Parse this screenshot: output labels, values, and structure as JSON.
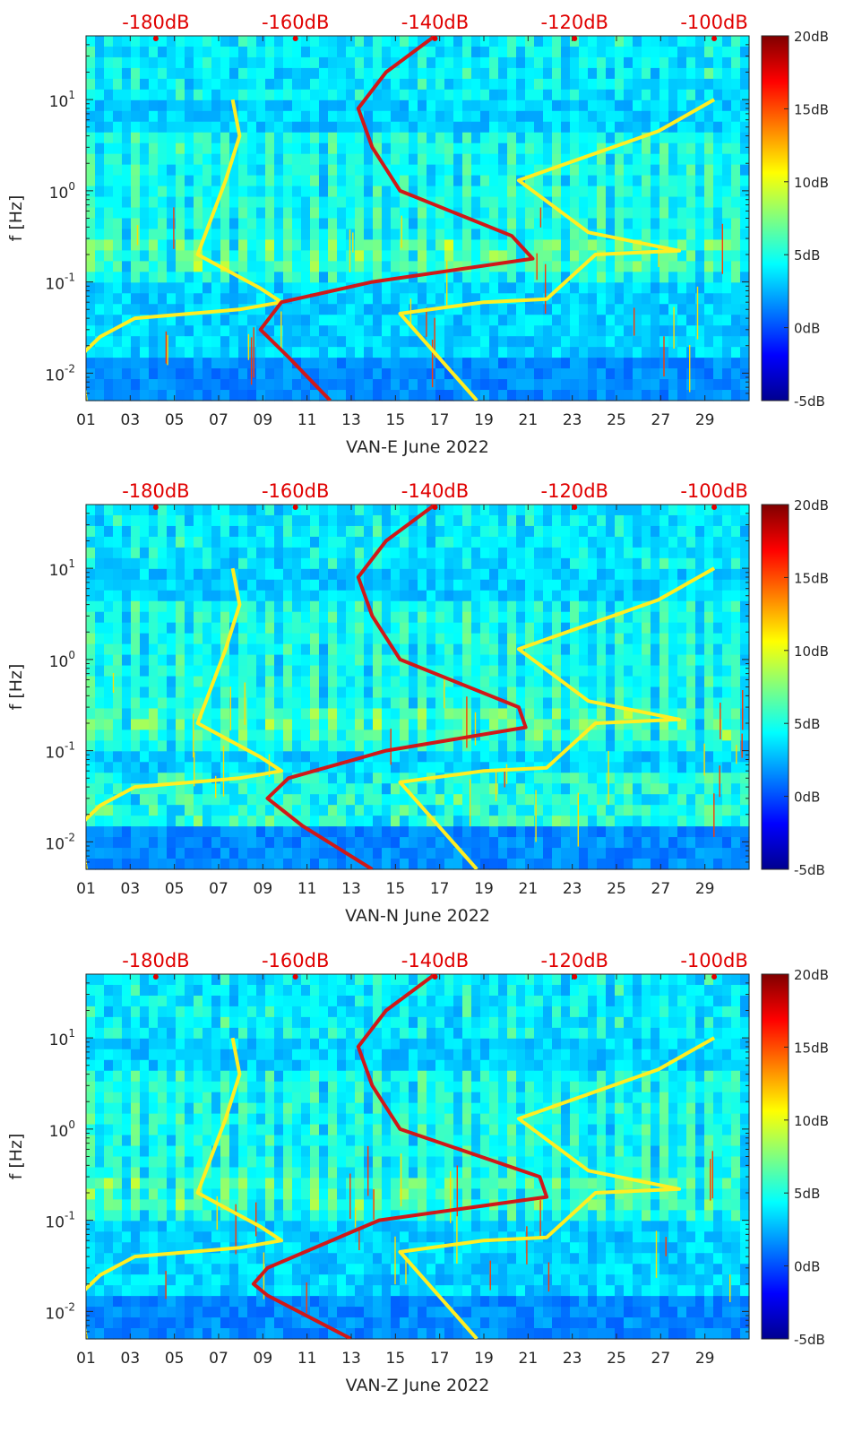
{
  "colors": {
    "yellow_curve": "#ffee22",
    "red_curve": "#d01818",
    "top_scale": "#e00000",
    "axis": "#262626"
  },
  "colorbar": {
    "ticks": [
      "20dB",
      "15dB",
      "10dB",
      "5dB",
      "0dB",
      "-5dB"
    ],
    "range_db": [
      -5,
      20
    ],
    "colormap": "jet"
  },
  "chart_data": [
    {
      "type": "heatmap",
      "subtitle": "spectrogram with overlaid reference curves",
      "xlabel": "VAN-E June 2022",
      "ylabel": "f [Hz]",
      "x_range_days": [
        1,
        31
      ],
      "y_range_hz": [
        0.005,
        50
      ],
      "yscale": "log",
      "x_tick_labels": [
        "01",
        "03",
        "05",
        "07",
        "09",
        "11",
        "13",
        "15",
        "17",
        "19",
        "21",
        "23",
        "25",
        "27",
        "29"
      ],
      "y_tick_labels": [
        "10^{-2}",
        "10^{-1}",
        "10^{0}",
        "10^{1}"
      ],
      "top_axis": {
        "label_values": [
          "-180dB",
          "-160dB",
          "-140dB",
          "-120dB",
          "-100dB"
        ],
        "range_db": [
          -190,
          -95
        ]
      },
      "series": [
        {
          "name": "yellow-low",
          "color": "yellow",
          "points": [
            [
              -190,
              0.005
            ],
            [
              -191,
              0.015
            ],
            [
              -188,
              0.025
            ],
            [
              -183,
              0.04
            ],
            [
              -168,
              0.05
            ],
            [
              -162,
              0.06
            ],
            [
              -165,
              0.085
            ],
            [
              -174,
              0.2
            ],
            [
              -170,
              1.3
            ],
            [
              -168,
              4
            ],
            [
              -169,
              10
            ]
          ]
        },
        {
          "name": "yellow-high",
          "color": "yellow",
          "points": [
            [
              -134,
              0.005
            ],
            [
              -145,
              0.045
            ],
            [
              -133,
              0.06
            ],
            [
              -124,
              0.065
            ],
            [
              -117,
              0.2
            ],
            [
              -105,
              0.22
            ],
            [
              -118,
              0.35
            ],
            [
              -128,
              1.3
            ],
            [
              -108,
              4.5
            ],
            [
              -100,
              10
            ]
          ]
        },
        {
          "name": "red-nlnm",
          "color": "red",
          "points": [
            [
              -155,
              0.005
            ],
            [
              -161,
              0.015
            ],
            [
              -165,
              0.03
            ],
            [
              -162,
              0.06
            ],
            [
              -149,
              0.1
            ],
            [
              -126,
              0.18
            ],
            [
              -129,
              0.32
            ],
            [
              -145,
              1
            ],
            [
              -149,
              3
            ],
            [
              -151,
              8
            ],
            [
              -147,
              20
            ],
            [
              -140,
              50
            ]
          ]
        }
      ]
    },
    {
      "type": "heatmap",
      "subtitle": "spectrogram with overlaid reference curves",
      "xlabel": "VAN-N June 2022",
      "ylabel": "f [Hz]",
      "x_range_days": [
        1,
        31
      ],
      "y_range_hz": [
        0.005,
        50
      ],
      "yscale": "log",
      "x_tick_labels": [
        "01",
        "03",
        "05",
        "07",
        "09",
        "11",
        "13",
        "15",
        "17",
        "19",
        "21",
        "23",
        "25",
        "27",
        "29"
      ],
      "y_tick_labels": [
        "10^{-2}",
        "10^{-1}",
        "10^{0}",
        "10^{1}"
      ],
      "top_axis": {
        "label_values": [
          "-180dB",
          "-160dB",
          "-140dB",
          "-120dB",
          "-100dB"
        ],
        "range_db": [
          -190,
          -95
        ]
      },
      "series": [
        {
          "name": "yellow-low",
          "color": "yellow",
          "points": [
            [
              -190,
              0.005
            ],
            [
              -191,
              0.015
            ],
            [
              -188,
              0.025
            ],
            [
              -183,
              0.04
            ],
            [
              -168,
              0.05
            ],
            [
              -162,
              0.06
            ],
            [
              -165,
              0.085
            ],
            [
              -174,
              0.2
            ],
            [
              -170,
              1.3
            ],
            [
              -168,
              4
            ],
            [
              -169,
              10
            ]
          ]
        },
        {
          "name": "yellow-high",
          "color": "yellow",
          "points": [
            [
              -134,
              0.005
            ],
            [
              -145,
              0.045
            ],
            [
              -133,
              0.06
            ],
            [
              -124,
              0.065
            ],
            [
              -117,
              0.2
            ],
            [
              -105,
              0.22
            ],
            [
              -118,
              0.35
            ],
            [
              -128,
              1.3
            ],
            [
              -108,
              4.5
            ],
            [
              -100,
              10
            ]
          ]
        },
        {
          "name": "red-nlnm",
          "color": "red",
          "points": [
            [
              -149,
              0.005
            ],
            [
              -159,
              0.015
            ],
            [
              -164,
              0.03
            ],
            [
              -161,
              0.05
            ],
            [
              -147,
              0.1
            ],
            [
              -127,
              0.18
            ],
            [
              -128,
              0.3
            ],
            [
              -145,
              1
            ],
            [
              -149,
              3
            ],
            [
              -151,
              8
            ],
            [
              -147,
              20
            ],
            [
              -140,
              50
            ]
          ]
        }
      ]
    },
    {
      "type": "heatmap",
      "subtitle": "spectrogram with overlaid reference curves",
      "xlabel": "VAN-Z June 2022",
      "ylabel": "f [Hz]",
      "x_range_days": [
        1,
        31
      ],
      "y_range_hz": [
        0.005,
        50
      ],
      "yscale": "log",
      "x_tick_labels": [
        "01",
        "03",
        "05",
        "07",
        "09",
        "11",
        "13",
        "15",
        "17",
        "19",
        "21",
        "23",
        "25",
        "27",
        "29"
      ],
      "y_tick_labels": [
        "10^{-2}",
        "10^{-1}",
        "10^{0}",
        "10^{1}"
      ],
      "top_axis": {
        "label_values": [
          "-180dB",
          "-160dB",
          "-140dB",
          "-120dB",
          "-100dB"
        ],
        "range_db": [
          -190,
          -95
        ]
      },
      "series": [
        {
          "name": "yellow-low",
          "color": "yellow",
          "points": [
            [
              -190,
              0.005
            ],
            [
              -191,
              0.015
            ],
            [
              -188,
              0.025
            ],
            [
              -183,
              0.04
            ],
            [
              -168,
              0.05
            ],
            [
              -162,
              0.06
            ],
            [
              -165,
              0.085
            ],
            [
              -174,
              0.2
            ],
            [
              -170,
              1.3
            ],
            [
              -168,
              4
            ],
            [
              -169,
              10
            ]
          ]
        },
        {
          "name": "yellow-high",
          "color": "yellow",
          "points": [
            [
              -134,
              0.005
            ],
            [
              -145,
              0.045
            ],
            [
              -133,
              0.06
            ],
            [
              -124,
              0.065
            ],
            [
              -117,
              0.2
            ],
            [
              -105,
              0.22
            ],
            [
              -118,
              0.35
            ],
            [
              -128,
              1.3
            ],
            [
              -108,
              4.5
            ],
            [
              -100,
              10
            ]
          ]
        },
        {
          "name": "red-nlnm",
          "color": "red",
          "points": [
            [
              -152,
              0.005
            ],
            [
              -164,
              0.015
            ],
            [
              -166,
              0.02
            ],
            [
              -164,
              0.03
            ],
            [
              -148,
              0.1
            ],
            [
              -124,
              0.18
            ],
            [
              -125,
              0.3
            ],
            [
              -145,
              1
            ],
            [
              -149,
              3
            ],
            [
              -151,
              8
            ],
            [
              -147,
              20
            ],
            [
              -140,
              50
            ]
          ]
        }
      ]
    }
  ]
}
